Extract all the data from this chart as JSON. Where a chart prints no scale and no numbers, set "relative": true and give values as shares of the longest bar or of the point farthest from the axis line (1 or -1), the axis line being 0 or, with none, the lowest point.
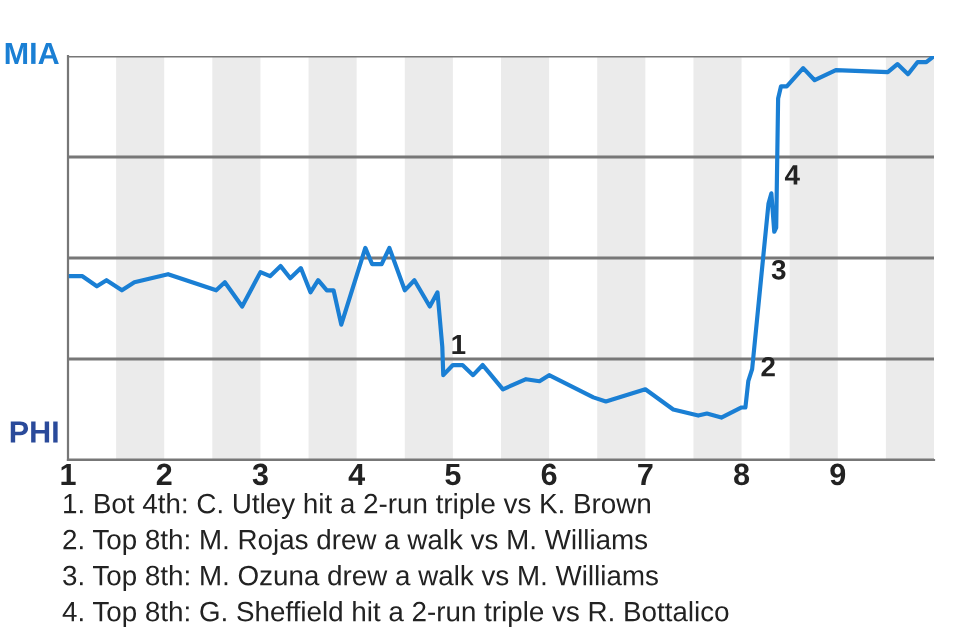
{
  "chart_data": {
    "type": "line",
    "relative": true,
    "x": [
      1.03,
      1.15,
      1.3,
      1.4,
      1.56,
      1.69,
      2.04,
      2.54,
      2.63,
      2.81,
      3.0,
      3.1,
      3.21,
      3.31,
      3.42,
      3.52,
      3.6,
      3.69,
      3.76,
      3.84,
      4.09,
      4.16,
      4.26,
      4.34,
      4.5,
      4.6,
      4.76,
      4.84,
      4.89,
      4.9,
      5.0,
      5.1,
      5.21,
      5.31,
      5.38,
      5.52,
      5.76,
      5.9,
      6.0,
      6.46,
      6.59,
      7.0,
      7.29,
      7.55,
      7.64,
      7.79,
      8.0,
      8.04,
      8.07,
      8.11,
      8.28,
      8.31,
      8.34,
      8.36,
      8.38,
      8.41,
      8.47,
      8.64,
      8.76,
      8.98,
      9.52,
      9.62,
      9.73,
      9.83,
      9.92,
      10.0
    ],
    "series": [
      {
        "color": "#1a7fd4",
        "values": [
          0.455,
          0.455,
          0.43,
          0.445,
          0.42,
          0.44,
          0.46,
          0.42,
          0.44,
          0.38,
          0.465,
          0.455,
          0.48,
          0.45,
          0.475,
          0.415,
          0.445,
          0.42,
          0.42,
          0.335,
          0.525,
          0.485,
          0.485,
          0.525,
          0.42,
          0.445,
          0.38,
          0.415,
          0.28,
          0.21,
          0.235,
          0.235,
          0.21,
          0.235,
          0.215,
          0.175,
          0.2,
          0.195,
          0.21,
          0.155,
          0.145,
          0.175,
          0.125,
          0.11,
          0.115,
          0.105,
          0.13,
          0.13,
          0.195,
          0.225,
          0.635,
          0.66,
          0.565,
          0.575,
          0.895,
          0.925,
          0.925,
          0.97,
          0.94,
          0.965,
          0.96,
          0.98,
          0.955,
          0.985,
          0.985,
          1.0
        ]
      }
    ],
    "xlim": [
      1,
      10
    ],
    "xticks": [
      1,
      2,
      3,
      4,
      5,
      6,
      7,
      8,
      9
    ],
    "marker": "none",
    "line_style": "solid",
    "legend": false,
    "ref_lines": [
      {
        "axis": "y",
        "value": 1,
        "label": "MIA",
        "color": "#777777"
      },
      {
        "axis": "y",
        "value": 0.75,
        "color": "#777777"
      },
      {
        "axis": "y",
        "value": 0.5,
        "color": "#777777"
      },
      {
        "axis": "y",
        "value": 0.25,
        "color": "#777777"
      },
      {
        "axis": "y",
        "value": 0,
        "label": "PHI",
        "color": "#777777"
      }
    ],
    "bands": [
      {
        "axis": "x",
        "from": 1.5,
        "to": 2,
        "color": "#ebebeb"
      },
      {
        "axis": "x",
        "from": 2.5,
        "to": 3,
        "color": "#ebebeb"
      },
      {
        "axis": "x",
        "from": 3.5,
        "to": 4,
        "color": "#ebebeb"
      },
      {
        "axis": "x",
        "from": 4.5,
        "to": 5,
        "color": "#ebebeb"
      },
      {
        "axis": "x",
        "from": 5.5,
        "to": 6,
        "color": "#ebebeb"
      },
      {
        "axis": "x",
        "from": 6.5,
        "to": 7,
        "color": "#ebebeb"
      },
      {
        "axis": "x",
        "from": 7.5,
        "to": 8,
        "color": "#ebebeb"
      },
      {
        "axis": "x",
        "from": 8.5,
        "to": 9,
        "color": "#ebebeb"
      },
      {
        "axis": "x",
        "from": 9.5,
        "to": 10,
        "color": "#ebebeb"
      }
    ],
    "annotations": [
      {
        "text": "1",
        "x": 4.89,
        "y": 0.28
      },
      {
        "text": "2",
        "x": 8.11,
        "y": 0.225
      },
      {
        "text": "3",
        "x": 8.22,
        "y": 0.465
      },
      {
        "text": "4",
        "x": 8.36,
        "y": 0.7
      },
      "1. Bot 4th: C. Utley hit a 2-run triple vs K. Brown",
      "2. Top 8th: M. Rojas drew a walk vs M. Williams",
      "3. Top 8th: M. Ozuna drew a walk vs M. Williams",
      "4. Top 8th: G. Sheffield hit a 2-run triple vs R. Bottalico"
    ]
  }
}
